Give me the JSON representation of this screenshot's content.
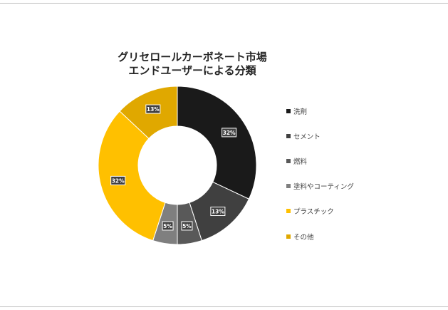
{
  "chart_data": {
    "type": "donut",
    "title": [
      "グリセロールカーボネート市場",
      "エンドユーザーによる分類"
    ],
    "categories": [
      "洗剤",
      "セメント",
      "燃料",
      "塗料やコーティング",
      "プラスチック",
      "その他"
    ],
    "values": [
      32,
      13,
      5,
      5,
      32,
      13
    ],
    "data_labels": [
      "32%",
      "13%",
      "5%",
      "5%",
      "32%",
      "13%"
    ],
    "colors": [
      "#1a1a1a",
      "#404040",
      "#595959",
      "#7f7f7f",
      "#ffc000",
      "#e0a800"
    ],
    "legend_position": "right"
  }
}
